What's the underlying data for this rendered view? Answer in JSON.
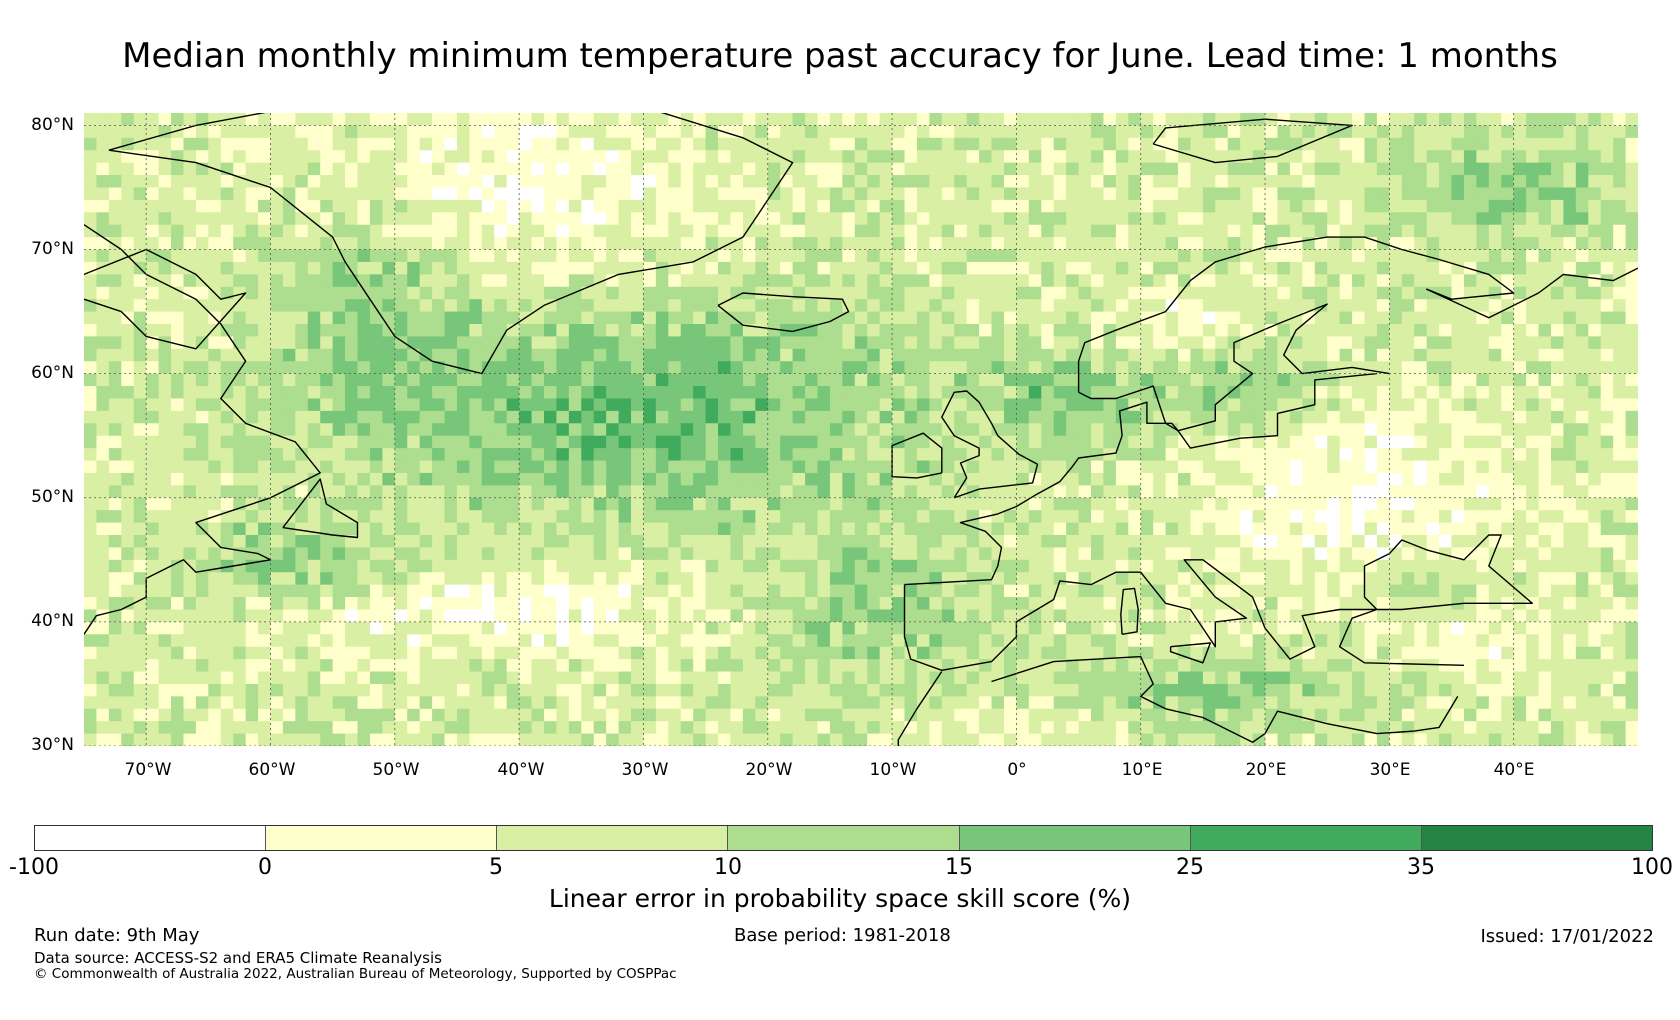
{
  "title": "Median monthly minimum temperature past accuracy for June. Lead time: 1 months",
  "map": {
    "region": "North Atlantic and Europe",
    "lat_labels": [
      "80°N",
      "70°N",
      "60°N",
      "50°N",
      "40°N",
      "30°N"
    ],
    "lon_labels": [
      "70°W",
      "60°W",
      "50°W",
      "40°W",
      "30°W",
      "20°W",
      "10°W",
      "0°",
      "10°E",
      "20°E",
      "30°E",
      "40°E"
    ],
    "lat_range": [
      30,
      81
    ],
    "lon_range": [
      -75,
      50
    ],
    "gridlines": true,
    "colors": {
      "land_outline": "#000000",
      "gridline": "#555555"
    }
  },
  "colorbar": {
    "label": "Linear error in probability space skill score (%)",
    "ticks": [
      "-100",
      "0",
      "5",
      "10",
      "15",
      "25",
      "35",
      "100"
    ],
    "bins": [
      {
        "range": [
          -100,
          0
        ],
        "color": "#ffffff"
      },
      {
        "range": [
          0,
          5
        ],
        "color": "#ffffcc"
      },
      {
        "range": [
          5,
          10
        ],
        "color": "#d9efa3"
      },
      {
        "range": [
          10,
          15
        ],
        "color": "#addd8e"
      },
      {
        "range": [
          15,
          25
        ],
        "color": "#78c679"
      },
      {
        "range": [
          25,
          35
        ],
        "color": "#41ab5d"
      },
      {
        "range": [
          35,
          100
        ],
        "color": "#238443"
      }
    ]
  },
  "footer": {
    "run_date": "Run date: 9th May",
    "base_period": "Base period: 1981-2018",
    "issued": "Issued: 17/01/2022",
    "data_source": "Data source: ACCESS-S2 and ERA5 Climate Reanalysis",
    "copyright": "© Commonwealth of Australia 2022, Australian Bureau of Meteorology, Supported by COSPPac"
  }
}
